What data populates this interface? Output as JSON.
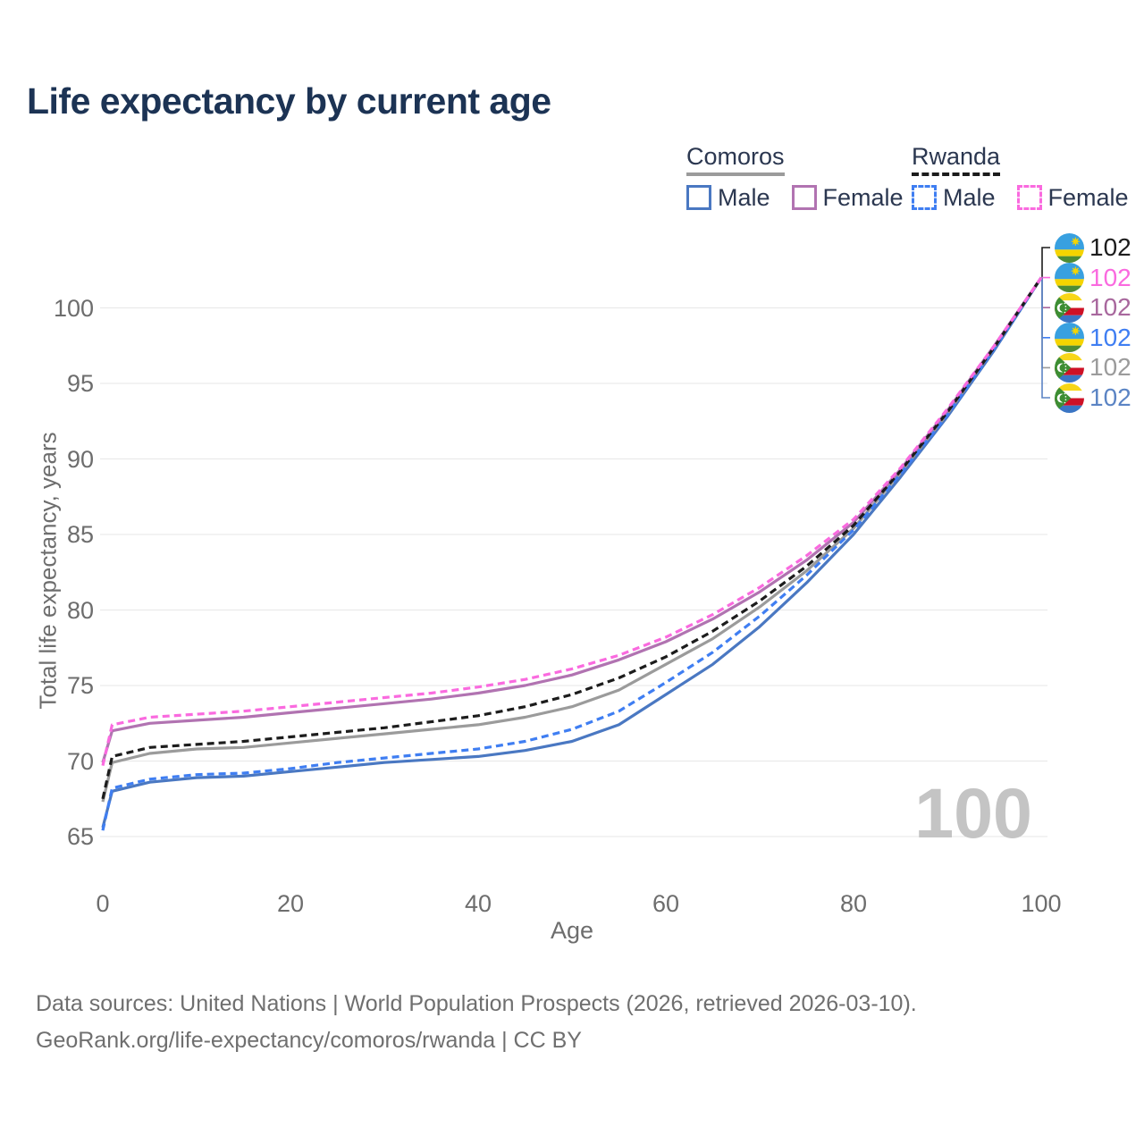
{
  "title": "Life expectancy by current age",
  "legend": {
    "groups": [
      {
        "country": "Comoros",
        "underline_style": "solid",
        "underline_color": "#9b9b9b",
        "items": [
          {
            "label": "Male",
            "color": "#4a78c2",
            "line_style": "solid"
          },
          {
            "label": "Female",
            "color": "#b173b1",
            "line_style": "solid"
          }
        ]
      },
      {
        "country": "Rwanda",
        "underline_style": "dashed",
        "underline_color": "#1c1c1c",
        "items": [
          {
            "label": "Male",
            "color": "#3f7ef2",
            "line_style": "dashed"
          },
          {
            "label": "Female",
            "color": "#fa6adf",
            "line_style": "dashed"
          }
        ]
      }
    ]
  },
  "chart_data": {
    "type": "line",
    "title": "Life expectancy by current age",
    "xlabel": "Age",
    "ylabel": "Total life expectancy, years",
    "xlim": [
      0,
      100
    ],
    "ylim": [
      65,
      102
    ],
    "xticks": [
      0,
      20,
      40,
      60,
      80,
      100
    ],
    "yticks": [
      65,
      70,
      75,
      80,
      85,
      90,
      95,
      100
    ],
    "grid": "horizontal-only",
    "gridline_color": "#e7e7e7",
    "x": [
      0,
      1,
      5,
      10,
      15,
      20,
      25,
      30,
      35,
      40,
      45,
      50,
      55,
      60,
      65,
      70,
      75,
      80,
      85,
      90,
      95,
      100
    ],
    "series": [
      {
        "name": "Comoros Male",
        "country": "Comoros",
        "sex": "male",
        "color": "#4a78c2",
        "line_style": "solid",
        "values": [
          65.6,
          68.0,
          68.6,
          68.9,
          69.0,
          69.3,
          69.6,
          69.9,
          70.1,
          70.3,
          70.7,
          71.3,
          72.4,
          74.4,
          76.4,
          78.9,
          81.8,
          85.0,
          88.8,
          92.8,
          97.2,
          102
        ]
      },
      {
        "name": "Comoros Both sexes",
        "country": "Comoros",
        "sex": "both",
        "color": "#9b9b9b",
        "line_style": "solid",
        "values": [
          67.3,
          69.9,
          70.5,
          70.8,
          70.9,
          71.2,
          71.5,
          71.8,
          72.1,
          72.4,
          72.9,
          73.6,
          74.7,
          76.4,
          78.1,
          80.2,
          82.6,
          85.4,
          89.1,
          93.0,
          97.4,
          102
        ]
      },
      {
        "name": "Comoros Female",
        "country": "Comoros",
        "sex": "female",
        "color": "#b173b1",
        "line_style": "solid",
        "values": [
          69.9,
          72.0,
          72.5,
          72.7,
          72.9,
          73.2,
          73.5,
          73.8,
          74.1,
          74.5,
          75.0,
          75.7,
          76.7,
          77.9,
          79.4,
          81.2,
          83.3,
          85.8,
          89.3,
          93.2,
          97.5,
          102
        ]
      },
      {
        "name": "Rwanda Male",
        "country": "Rwanda",
        "sex": "male",
        "color": "#3f7ef2",
        "line_style": "dashed",
        "values": [
          65.4,
          68.2,
          68.8,
          69.1,
          69.2,
          69.5,
          69.9,
          70.2,
          70.5,
          70.8,
          71.3,
          72.1,
          73.3,
          75.2,
          77.2,
          79.6,
          82.3,
          85.3,
          89.0,
          92.9,
          97.3,
          102
        ]
      },
      {
        "name": "Rwanda Both sexes",
        "country": "Rwanda",
        "sex": "both",
        "color": "#1c1c1c",
        "line_style": "dashed",
        "values": [
          67.5,
          70.3,
          70.9,
          71.1,
          71.3,
          71.6,
          71.9,
          72.2,
          72.6,
          73.0,
          73.6,
          74.4,
          75.5,
          76.9,
          78.6,
          80.6,
          82.9,
          85.6,
          89.2,
          93.1,
          97.4,
          102
        ]
      },
      {
        "name": "Rwanda Female",
        "country": "Rwanda",
        "sex": "female",
        "color": "#fa6adf",
        "line_style": "dashed",
        "values": [
          69.7,
          72.4,
          72.9,
          73.1,
          73.3,
          73.6,
          73.9,
          74.2,
          74.5,
          74.9,
          75.4,
          76.1,
          77.0,
          78.2,
          79.7,
          81.5,
          83.6,
          86.0,
          89.4,
          93.3,
          97.5,
          102
        ]
      }
    ],
    "legend_position": "top-right",
    "end_value_annotation": 102
  },
  "end_labels": [
    {
      "value": "102",
      "color": "#1c1c1c",
      "flag": "rwanda"
    },
    {
      "value": "102",
      "color": "#fa6adf",
      "flag": "rwanda"
    },
    {
      "value": "102",
      "color": "#a8679d",
      "flag": "comoros"
    },
    {
      "value": "102",
      "color": "#3f7ef2",
      "flag": "rwanda"
    },
    {
      "value": "102",
      "color": "#9b9b9b",
      "flag": "comoros"
    },
    {
      "value": "102",
      "color": "#5b84c4",
      "flag": "comoros"
    }
  ],
  "watermark": "100",
  "footer": {
    "line1": "Data sources: United Nations | World Population Prospects (2026, retrieved 2026-03-10).",
    "line2": "GeoRank.org/life-expectancy/comoros/rwanda | CC BY"
  },
  "flag_colors": {
    "rwanda": {
      "blue": "#38a0e0",
      "yellow": "#f5d400",
      "green": "#4d8c35"
    },
    "comoros": {
      "yellow": "#f7d618",
      "white": "#ffffff",
      "red": "#ce1126",
      "blue": "#3a75c4",
      "green": "#3d8e33"
    }
  }
}
